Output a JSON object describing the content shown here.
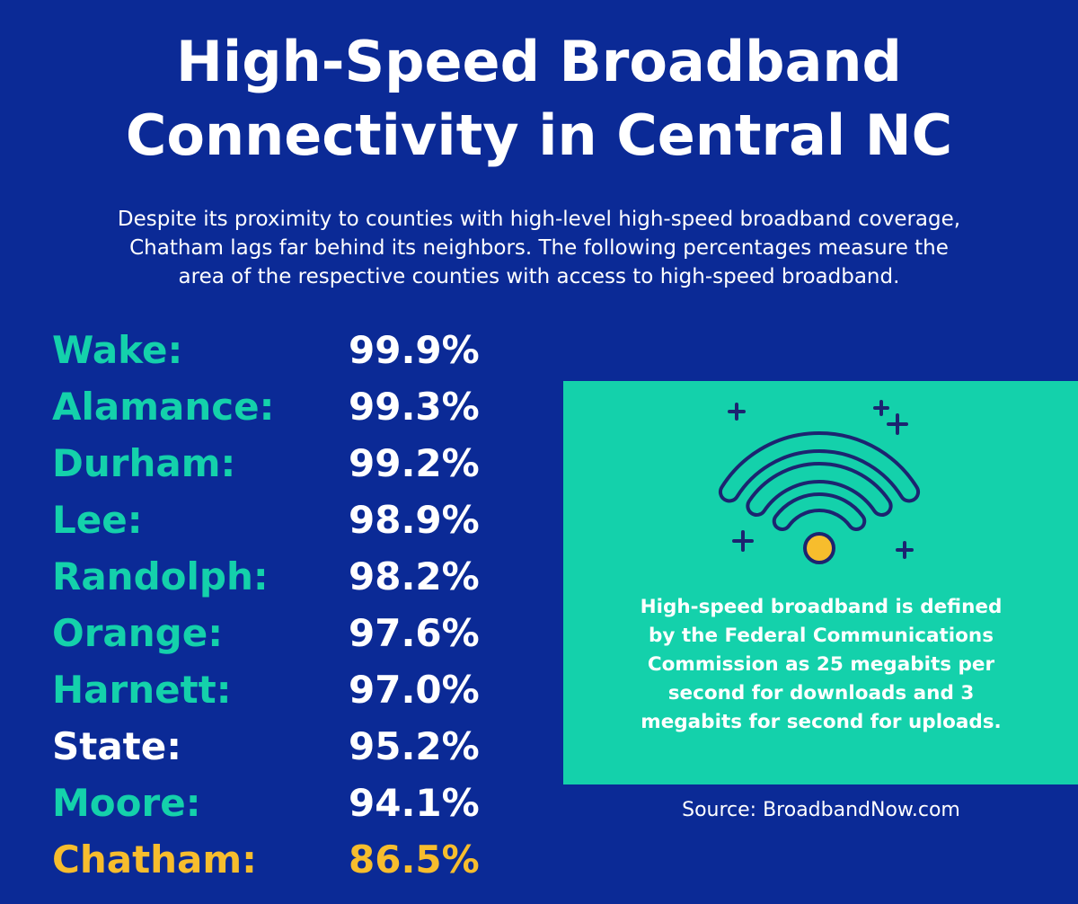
{
  "title": {
    "line1": "High-Speed Broadband",
    "line2": "Connectivity in Central NC"
  },
  "subtitle": {
    "line1": "Despite its proximity to counties with high-level high-speed broadband coverage,",
    "line2": "Chatham lags far behind its neighbors. The following percentages measure the",
    "line3": "area of the respective counties with access to high-speed broadband."
  },
  "counties": [
    {
      "name": "Wake:",
      "value": "99.9%"
    },
    {
      "name": "Alamance:",
      "value": "99.3%"
    },
    {
      "name": "Durham:",
      "value": "99.2%"
    },
    {
      "name": "Lee:",
      "value": "98.9%"
    },
    {
      "name": "Randolph:",
      "value": "98.2%"
    },
    {
      "name": "Orange:",
      "value": "97.6%"
    },
    {
      "name": "Harnett:",
      "value": "97.0%"
    },
    {
      "name": "State:",
      "value": "95.2%"
    },
    {
      "name": "Moore:",
      "value": "94.1%"
    },
    {
      "name": "Chatham:",
      "value": "86.5%"
    }
  ],
  "definition": {
    "line1": "High-speed broadband is defined",
    "line2": "by the Federal Communications",
    "line3": "Commission as 25 megabits per",
    "line4": "second for downloads and 3",
    "line5": "megabits for second for uploads."
  },
  "source": "Source: BroadbandNow.com",
  "icon": "wifi-icon",
  "colors": {
    "background": "#0b2a96",
    "county_label": "#14d1ab",
    "state_label": "#ffffff",
    "chatham": "#f7bd2d",
    "card": "#14d1ab",
    "icon_stroke": "#1c2470",
    "icon_dot": "#f7bd2d",
    "text": "#ffffff"
  }
}
